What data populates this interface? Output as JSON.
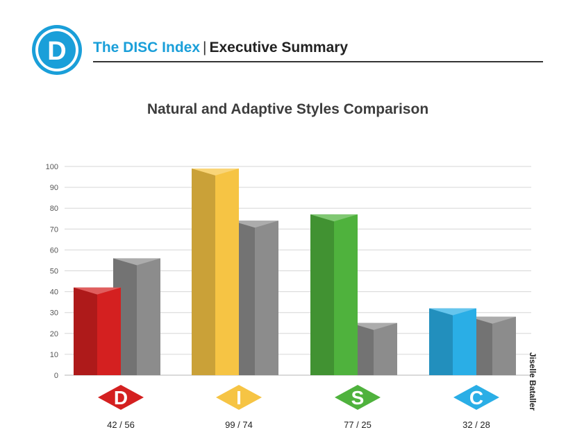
{
  "header": {
    "logo_letter": "D",
    "brand_name": "The DISC Index",
    "separator": "|",
    "subtitle": "Executive Summary"
  },
  "side_note": "Jiselle Bataller",
  "colors": {
    "brand": "#1a9fd9",
    "D": "#d42020",
    "I": "#f6c444",
    "S": "#4fb23d",
    "C": "#2aaee6",
    "adaptive": "#8c8c8c"
  },
  "chart_data": {
    "type": "bar",
    "title": "Natural and Adaptive Styles Comparison",
    "categories": [
      "D",
      "I",
      "S",
      "C"
    ],
    "series": [
      {
        "values": [
          42,
          99,
          77,
          32
        ]
      },
      {
        "values": [
          56,
          74,
          25,
          28
        ]
      }
    ],
    "value_labels": [
      "42 / 56",
      "99 / 74",
      "77 / 25",
      "32 / 28"
    ],
    "ylim": [
      0,
      100
    ],
    "yticks": [
      0,
      10,
      20,
      30,
      40,
      50,
      60,
      70,
      80,
      90,
      100
    ],
    "grid": true,
    "bar_style": "3d",
    "category_markers": "diamond"
  }
}
